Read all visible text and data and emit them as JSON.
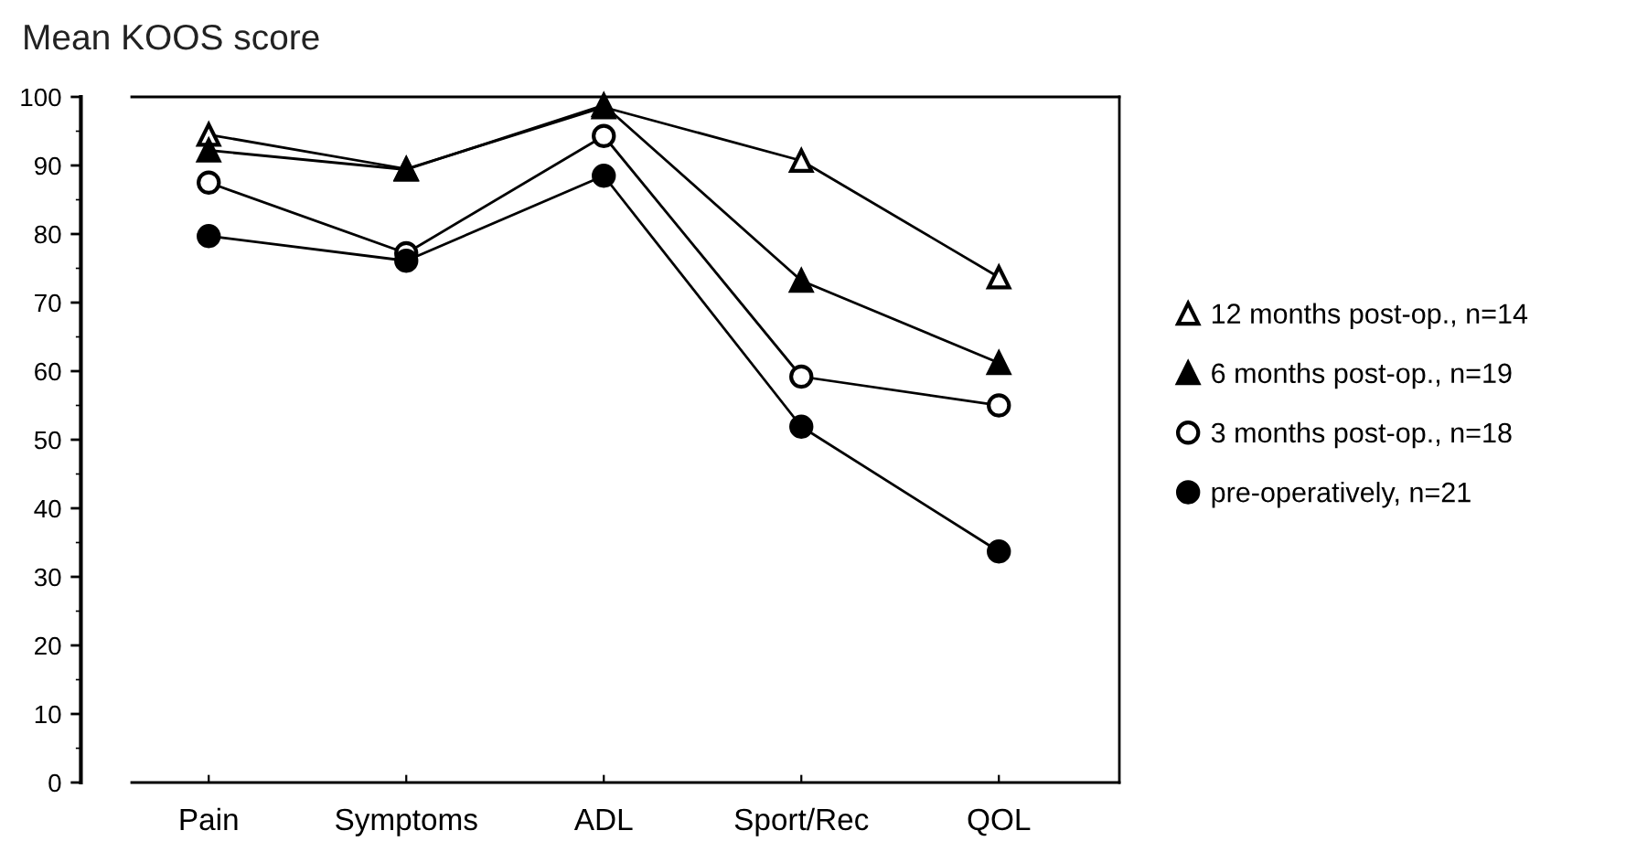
{
  "chart_data": {
    "type": "line",
    "title": "Mean KOOS score",
    "categories": [
      "Pain",
      "Symptoms",
      "ADL",
      "Sport/Rec",
      "QOL"
    ],
    "series": [
      {
        "name": "12 months post-op., n=14",
        "color": "#000000",
        "marker": "triangle",
        "values": [
          94.5,
          89.5,
          98.5,
          90.7,
          73.7
        ]
      },
      {
        "name": "6 months post-op., n=19",
        "color": "#000000",
        "marker": "triangle",
        "values": [
          92.2,
          89.4,
          98.8,
          73.2,
          61.2
        ]
      },
      {
        "name": "3 months post-op., n=18",
        "color": "#000000",
        "marker": "circle",
        "values": [
          87.5,
          77.2,
          94.3,
          59.2,
          55
        ]
      },
      {
        "name": "pre-operatively, n=21",
        "color": "#000000",
        "marker": "circle",
        "values": [
          79.7,
          76.1,
          88.5,
          51.9,
          33.7
        ]
      }
    ],
    "ylim": [
      0,
      100
    ],
    "yticks": [
      0,
      10,
      20,
      30,
      40,
      50,
      60,
      70,
      80,
      90,
      100
    ],
    "grid": false,
    "legend": "right",
    "line_style": "solid"
  }
}
